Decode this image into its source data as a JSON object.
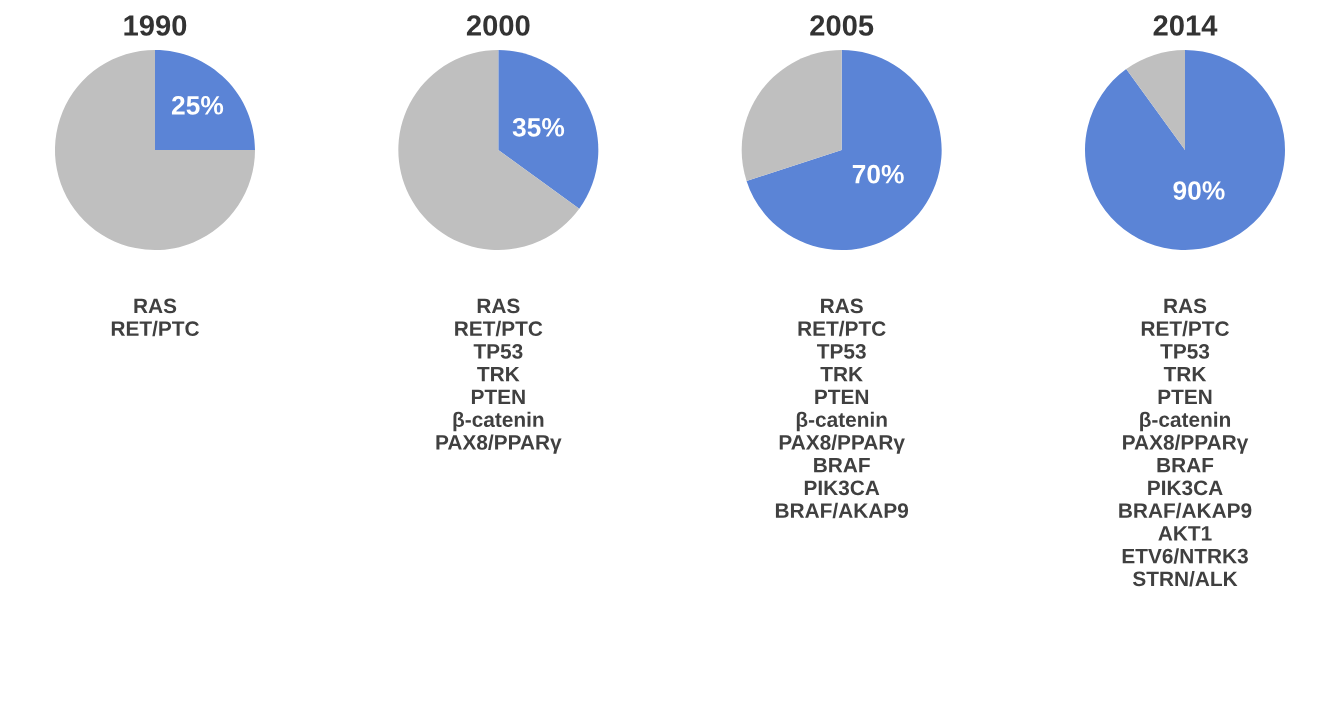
{
  "chart_data": [
    {
      "type": "pie",
      "title": "1990",
      "categories": [
        null,
        null
      ],
      "values": [
        25,
        75
      ],
      "colors": [
        "#5b84d6",
        "#bfbfbf"
      ],
      "value_labels": [
        "25%",
        null
      ],
      "annotations": [
        "RAS\nRET/PTC"
      ]
    },
    {
      "type": "pie",
      "title": "2000",
      "categories": [
        null,
        null
      ],
      "values": [
        35,
        65
      ],
      "colors": [
        "#5b84d6",
        "#bfbfbf"
      ],
      "value_labels": [
        "35%",
        null
      ],
      "annotations": [
        "RAS\nRET/PTC\nTP53\nTRK\nPTEN\nβ-catenin\nPAX8/PPARγ"
      ]
    },
    {
      "type": "pie",
      "title": "2005",
      "categories": [
        null,
        null
      ],
      "values": [
        70,
        30
      ],
      "colors": [
        "#5b84d6",
        "#bfbfbf"
      ],
      "value_labels": [
        "70%",
        null
      ],
      "annotations": [
        "RAS\nRET/PTC\nTP53\nTRK\nPTEN\nβ-catenin\nPAX8/PPARγ\nBRAF\nPIK3CA\nBRAF/AKAP9"
      ]
    },
    {
      "type": "pie",
      "title": "2014",
      "categories": [
        null,
        null
      ],
      "values": [
        90,
        10
      ],
      "colors": [
        "#5b84d6",
        "#bfbfbf"
      ],
      "value_labels": [
        "90%",
        null
      ],
      "annotations": [
        "RAS\nRET/PTC\nTP53\nTRK\nPTEN\nβ-catenin\nPAX8/PPARγ\nBRAF\nPIK3CA\nBRAF/AKAP9\nAKT1\nETV6/NTRK3\nSTRN/ALK"
      ]
    }
  ]
}
